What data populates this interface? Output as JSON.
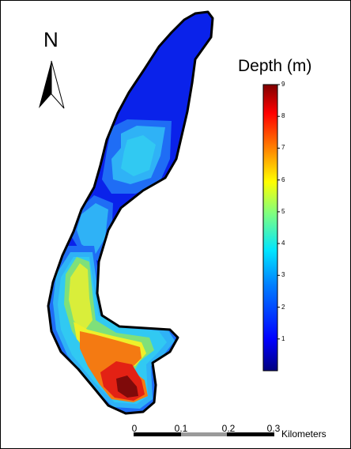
{
  "north_arrow": {
    "label": "N",
    "icon": "north-arrow-icon"
  },
  "legend": {
    "title": "Depth (m)",
    "min": 0,
    "max": 9,
    "ticks": [
      "1",
      "2",
      "3",
      "4",
      "5",
      "6",
      "7",
      "8",
      "9"
    ],
    "colors": [
      "#00007f",
      "#0000ff",
      "#007fff",
      "#00e5ff",
      "#7fff7f",
      "#ffff00",
      "#ff7f00",
      "#ff0000",
      "#7f0000"
    ]
  },
  "scale_bar": {
    "labels": [
      "0",
      "0.1",
      "0.2",
      "0.3"
    ],
    "unit": "Kilometers",
    "segment_colors": [
      "#000000",
      "#9a9a9a",
      "#000000"
    ]
  },
  "lake": {
    "outline_color": "#000000",
    "zone_colors": {
      "deep_blue": "#0a22ea",
      "blue": "#1f6df5",
      "light_blue": "#2fb2f6",
      "cyan": "#31c9f2",
      "green": "#7fe07a",
      "yellow_green": "#d9ee3a",
      "orange": "#f47a12",
      "red": "#e32114",
      "dark_red": "#7f0a0a"
    }
  }
}
